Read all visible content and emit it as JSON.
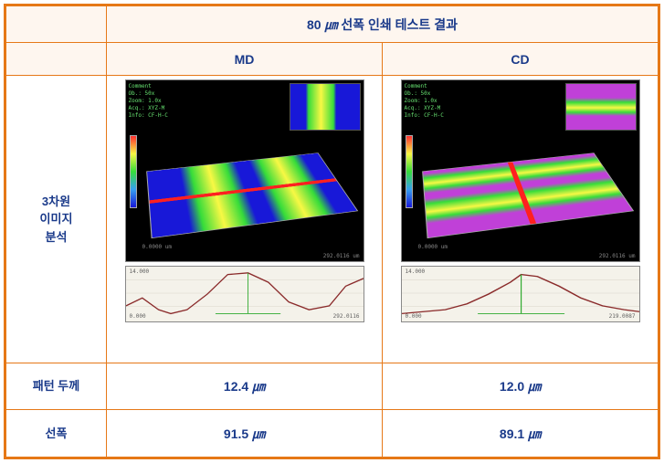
{
  "header": {
    "title_prefix": "80 ",
    "title_unit": "㎛",
    "title_suffix": " 선폭 인쇄 테스트 결과"
  },
  "columns": {
    "left": "MD",
    "right": "CD"
  },
  "rows": {
    "image_label_1": "3차원",
    "image_label_2": "이미지",
    "image_label_3": "분석",
    "thickness_label": "패턴 두께",
    "width_label": "선폭"
  },
  "values": {
    "md_thickness": "12.4 ",
    "cd_thickness": "12.0 ",
    "md_width": "91.5 ",
    "cd_width": "89.1 ",
    "unit": "㎛"
  },
  "viz": {
    "meta": {
      "line1": "Comment",
      "line2": "Ob.: 50x",
      "line3": "Zoom: 1.0x",
      "line4": "Acq.: XYZ-M",
      "line5": "Info: CF-H-C"
    },
    "surf_md": {
      "type": "3d-surface",
      "background": "#000000",
      "stripe_colors": [
        "#1818d8",
        "#36dc3a",
        "#f8f844"
      ],
      "crossline_color": "#ff2020",
      "crossline_direction": "horizontal",
      "axis_range_x_um": [
        0,
        292
      ],
      "axis_range_y_um": [
        0,
        219
      ],
      "axis_range_z_um": [
        0,
        14
      ]
    },
    "surf_cd": {
      "type": "3d-surface",
      "background": "#000000",
      "stripe_colors": [
        "#c040d8",
        "#36dc3a",
        "#f8f844"
      ],
      "crossline_color": "#ff2020",
      "crossline_direction": "vertical",
      "axis_range_x_um": [
        0,
        292
      ],
      "axis_range_y_um": [
        0,
        219
      ],
      "axis_range_z_um": [
        0,
        14
      ]
    },
    "profile_md": {
      "type": "line",
      "xlim_um": [
        0,
        292
      ],
      "ylim_um": [
        0,
        14
      ],
      "peak_height_um": 12.4,
      "line_color": "#8a2a2a",
      "marker_color": "#2eaa2e",
      "background_color": "#f4f2ea",
      "grid_color": "#d8d4c8",
      "points_x": [
        0,
        20,
        40,
        55,
        75,
        100,
        125,
        150,
        175,
        200,
        225,
        250,
        270,
        292
      ],
      "points_y": [
        4,
        6,
        3,
        2,
        3,
        7,
        12,
        12.4,
        10,
        5,
        3,
        4,
        9,
        11
      ]
    },
    "profile_cd": {
      "type": "line",
      "xlim_um": [
        0,
        219
      ],
      "ylim_um": [
        0,
        14
      ],
      "peak_height_um": 12.0,
      "line_color": "#8a2a2a",
      "marker_color": "#2eaa2e",
      "background_color": "#f4f2ea",
      "grid_color": "#d8d4c8",
      "points_x": [
        0,
        20,
        40,
        60,
        80,
        100,
        110,
        125,
        145,
        165,
        185,
        205,
        219
      ],
      "points_y": [
        2,
        2.5,
        3,
        4.5,
        7,
        10,
        12,
        11.5,
        9,
        6,
        4,
        3,
        2.5
      ]
    }
  },
  "colors": {
    "border": "#e67817",
    "header_bg": "#fef6ef",
    "text": "#1a3a8a"
  }
}
